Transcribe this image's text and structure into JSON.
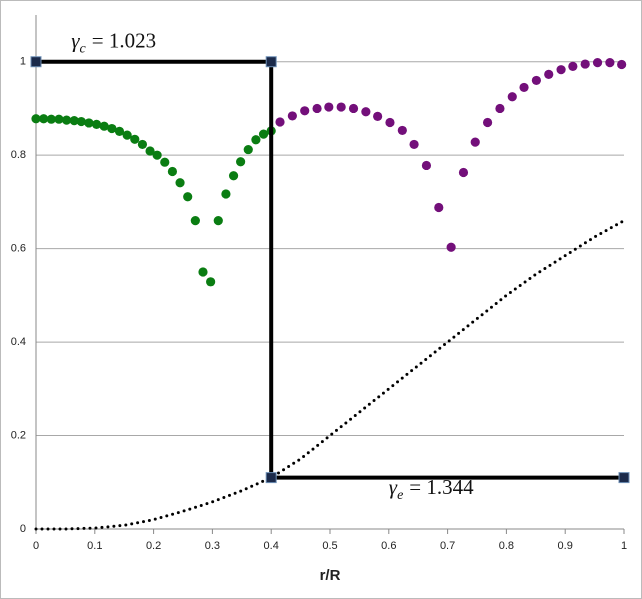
{
  "chart_data": {
    "type": "scatter",
    "xlabel": "r/R",
    "xlim": [
      0,
      1
    ],
    "xticks": [
      0,
      0.1,
      0.2,
      0.3,
      0.4,
      0.5,
      0.6,
      0.7,
      0.8,
      0.9,
      1
    ],
    "ylim": [
      0,
      1.1
    ],
    "yticks": [
      0,
      0.2,
      0.4,
      0.6,
      0.8,
      1
    ],
    "grid": true,
    "series": [
      {
        "color": "#0a7d12",
        "marker": "circle",
        "line": "none",
        "x": [
          0,
          0.013,
          0.026,
          0.039,
          0.052,
          0.065,
          0.077,
          0.09,
          0.103,
          0.116,
          0.129,
          0.142,
          0.155,
          0.168,
          0.181,
          0.194,
          0.206,
          0.219,
          0.232,
          0.245,
          0.258,
          0.271,
          0.284,
          0.297,
          0.31,
          0.323,
          0.336,
          0.348,
          0.361,
          0.374,
          0.387,
          0.4
        ],
        "values": [
          0.878,
          0.878,
          0.877,
          0.877,
          0.875,
          0.874,
          0.872,
          0.869,
          0.866,
          0.862,
          0.857,
          0.851,
          0.843,
          0.834,
          0.823,
          0.809,
          0.8,
          0.785,
          0.765,
          0.741,
          0.711,
          0.66,
          0.55,
          0.529,
          0.66,
          0.717,
          0.756,
          0.786,
          0.812,
          0.833,
          0.845,
          0.852
        ]
      },
      {
        "color": "#730f7a",
        "marker": "circle",
        "line": "none",
        "x": [
          0.415,
          0.436,
          0.457,
          0.478,
          0.498,
          0.519,
          0.54,
          0.561,
          0.581,
          0.602,
          0.623,
          0.643,
          0.664,
          0.685,
          0.706,
          0.727,
          0.747,
          0.768,
          0.789,
          0.81,
          0.83,
          0.851,
          0.872,
          0.893,
          0.913,
          0.934,
          0.955,
          0.976,
          0.996
        ],
        "values": [
          0.871,
          0.884,
          0.895,
          0.9,
          0.903,
          0.903,
          0.9,
          0.893,
          0.883,
          0.87,
          0.853,
          0.823,
          0.778,
          0.688,
          0.603,
          0.763,
          0.828,
          0.87,
          0.9,
          0.925,
          0.945,
          0.96,
          0.973,
          0.983,
          0.99,
          0.995,
          0.998,
          0.998,
          0.994
        ]
      },
      {
        "color": "#000000",
        "marker": "none",
        "line": "dotted",
        "x": [
          0,
          0.05,
          0.1,
          0.15,
          0.2,
          0.25,
          0.3,
          0.35,
          0.4,
          0.45,
          0.5,
          0.55,
          0.6,
          0.65,
          0.7,
          0.75,
          0.8,
          0.85,
          0.9,
          0.95,
          1
        ],
        "values": [
          0,
          0,
          0.002,
          0.008,
          0.02,
          0.038,
          0.058,
          0.082,
          0.11,
          0.15,
          0.2,
          0.25,
          0.3,
          0.35,
          0.4,
          0.45,
          0.5,
          0.545,
          0.585,
          0.625,
          0.66
        ]
      },
      {
        "color": "#000000",
        "marker": "square",
        "line": "solid",
        "x": [
          0,
          0.4,
          0.4,
          1
        ],
        "values": [
          1,
          1,
          0.11,
          0.11
        ]
      }
    ],
    "annotations": [
      {
        "symbol": "γ",
        "sub": "c",
        "text": "= 1.023",
        "x": 0.06,
        "y": 1.03
      },
      {
        "symbol": "γ",
        "sub": "e",
        "text": "= 1.344",
        "x": 0.6,
        "y": 0.075
      }
    ]
  }
}
